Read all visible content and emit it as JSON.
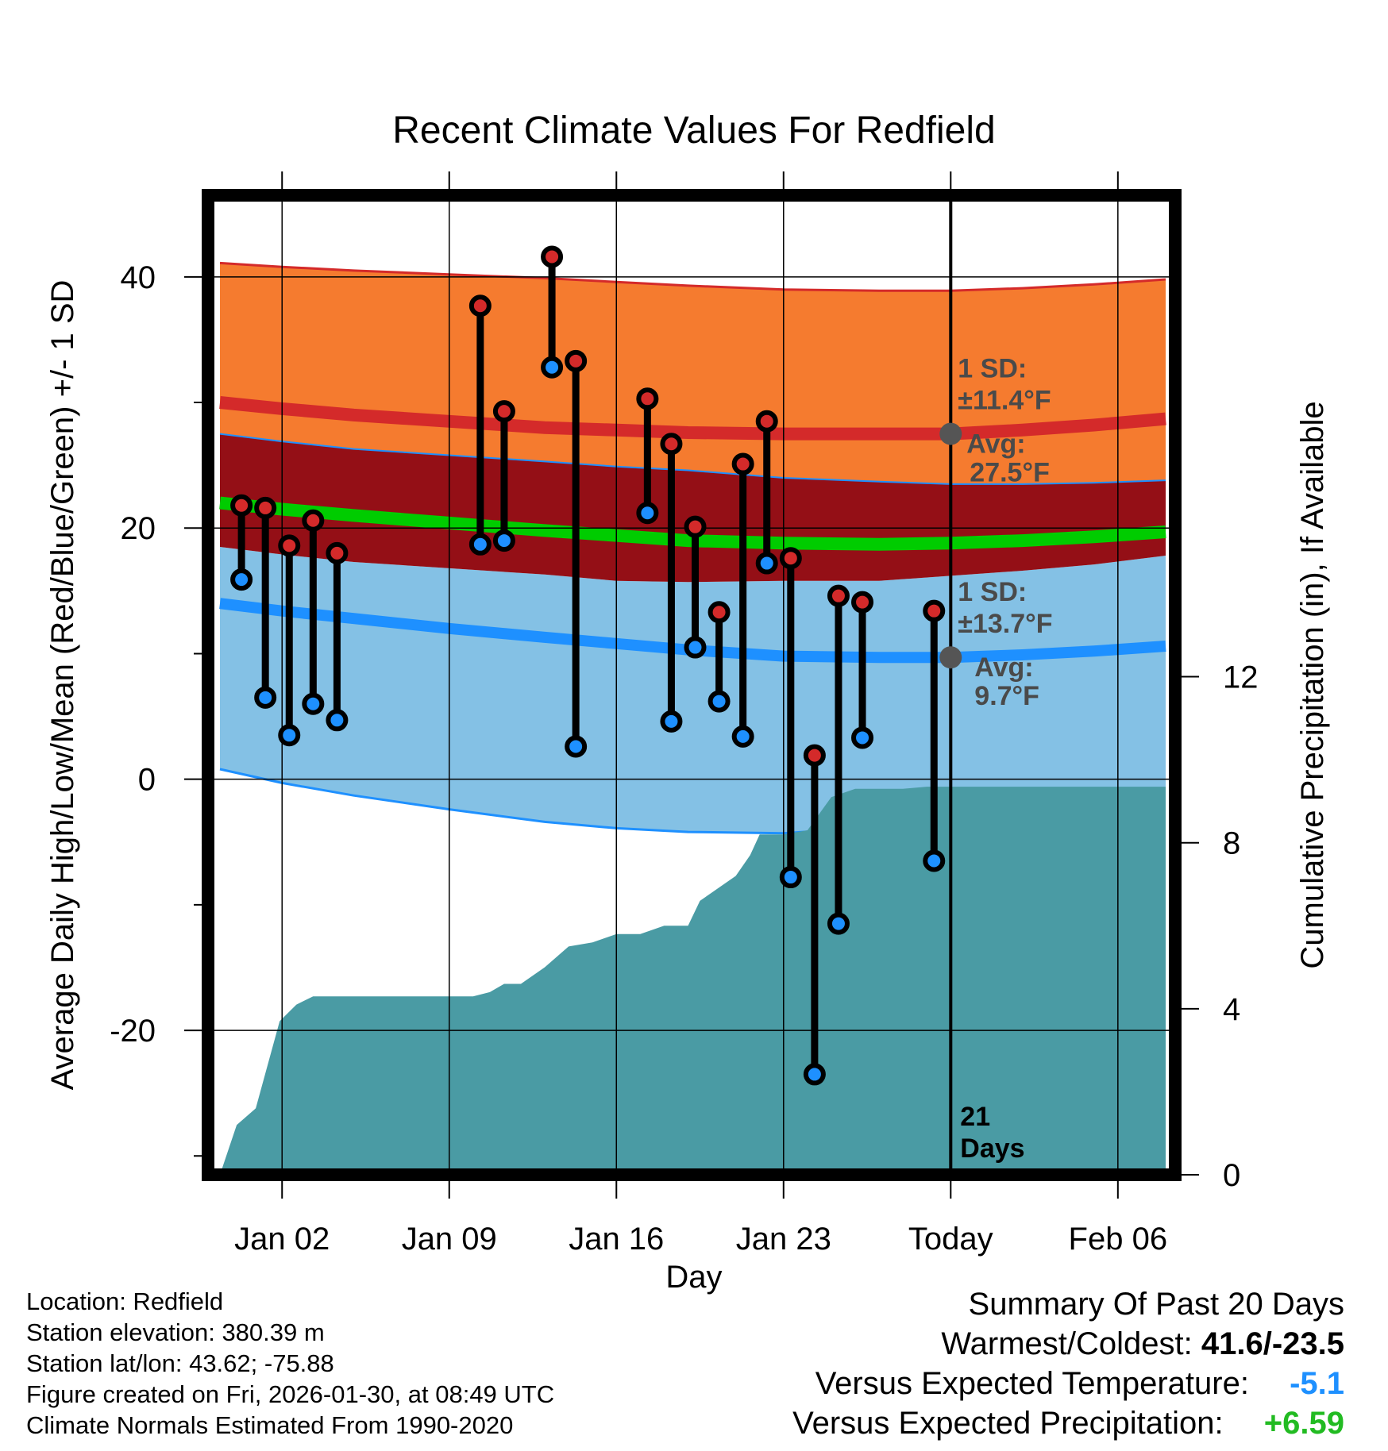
{
  "chart_data": {
    "type": "line",
    "title": "Recent Climate Values For Redfield",
    "xlabel": "Day",
    "ylabel_left": "Average Daily High/Low/Mean (Red/Blue/Green) +/- 1 SD",
    "ylabel_right": "Cumulative Precipitation (in), If Available",
    "xlim": [
      -2.1,
      38.4
    ],
    "ylim_left": [
      -31.5,
      46.5
    ],
    "ylim_right": [
      0,
      23.6
    ],
    "x_ticks": [
      {
        "x": 1,
        "label": "Jan 02"
      },
      {
        "x": 8,
        "label": "Jan 09"
      },
      {
        "x": 15,
        "label": "Jan 16"
      },
      {
        "x": 22,
        "label": "Jan 23"
      },
      {
        "x": 29,
        "label": "Today"
      },
      {
        "x": 36,
        "label": "Feb 06"
      }
    ],
    "y_ticks_left": [
      {
        "v": 40,
        "label": "40"
      },
      {
        "v": 20,
        "label": "20"
      },
      {
        "v": 0,
        "label": "0"
      },
      {
        "v": -20,
        "label": "-20"
      }
    ],
    "y_minor_left": [
      30,
      10,
      -10,
      -30
    ],
    "y_ticks_right": [
      {
        "v": 0,
        "label": "0"
      },
      {
        "v": 4,
        "label": "4"
      },
      {
        "v": 8,
        "label": "8"
      },
      {
        "v": 12,
        "label": "12"
      }
    ],
    "normals": {
      "x": [
        -1.6,
        1,
        4,
        8,
        12,
        15,
        18,
        22,
        26,
        29,
        32,
        35,
        38
      ],
      "high_avg": [
        30.0,
        29.5,
        29.0,
        28.5,
        28.0,
        27.8,
        27.6,
        27.5,
        27.5,
        27.5,
        27.8,
        28.2,
        28.7
      ],
      "high_sd_upper": [
        41.1,
        40.8,
        40.5,
        40.2,
        39.9,
        39.6,
        39.3,
        39.0,
        38.9,
        38.9,
        39.1,
        39.4,
        39.8
      ],
      "high_sd_lower": [
        27.5,
        26.9,
        26.3,
        25.8,
        25.3,
        24.9,
        24.6,
        24.0,
        23.7,
        23.5,
        23.5,
        23.6,
        23.8
      ],
      "mean": [
        22.0,
        21.5,
        21.0,
        20.4,
        19.8,
        19.4,
        19.0,
        18.8,
        18.7,
        18.8,
        19.0,
        19.3,
        19.7
      ],
      "low_avg": [
        14.0,
        13.4,
        12.8,
        12.0,
        11.3,
        10.8,
        10.3,
        9.8,
        9.7,
        9.7,
        9.9,
        10.2,
        10.6
      ],
      "low_sd_upper": [
        18.5,
        17.9,
        17.3,
        16.8,
        16.3,
        15.8,
        15.7,
        15.8,
        15.8,
        16.2,
        16.6,
        17.1,
        17.8
      ],
      "low_sd_lower": [
        0.8,
        -0.3,
        -1.3,
        -2.4,
        -3.4,
        -3.9,
        -4.2,
        -4.3,
        -3.8,
        -3.2,
        -2.8,
        -2.5,
        -2.3
      ]
    },
    "daily": [
      {
        "x": -0.7,
        "high": 21.8,
        "low": 15.9
      },
      {
        "x": 0.3,
        "high": 21.6,
        "low": 6.5
      },
      {
        "x": 1.3,
        "high": 18.6,
        "low": 3.5
      },
      {
        "x": 2.3,
        "high": 20.6,
        "low": 6.0
      },
      {
        "x": 3.3,
        "high": 18.0,
        "low": 4.7
      },
      {
        "x": 9.3,
        "high": 37.7,
        "low": 18.7
      },
      {
        "x": 10.3,
        "high": 29.3,
        "low": 19.0
      },
      {
        "x": 12.3,
        "high": 41.6,
        "low": 32.8
      },
      {
        "x": 13.3,
        "high": 33.3,
        "low": 2.6
      },
      {
        "x": 16.3,
        "high": 30.3,
        "low": 21.2
      },
      {
        "x": 17.3,
        "high": 26.7,
        "low": 4.6
      },
      {
        "x": 18.3,
        "high": 20.1,
        "low": 10.5
      },
      {
        "x": 19.3,
        "high": 13.3,
        "low": 6.2
      },
      {
        "x": 20.3,
        "high": 25.1,
        "low": 3.4
      },
      {
        "x": 21.3,
        "high": 28.5,
        "low": 17.2
      },
      {
        "x": 22.3,
        "high": 17.6,
        "low": -7.8
      },
      {
        "x": 23.3,
        "high": 1.9,
        "low": -23.5
      },
      {
        "x": 24.3,
        "high": 14.6,
        "low": -11.5
      },
      {
        "x": 25.3,
        "high": 14.1,
        "low": 3.3
      },
      {
        "x": 28.3,
        "high": 13.4,
        "low": -6.5
      }
    ],
    "precip_cumulative": {
      "x": [
        -1.6,
        -0.9,
        -0.1,
        0.9,
        1.6,
        2.3,
        3,
        4,
        5,
        6,
        7,
        8,
        9,
        9.7,
        10.3,
        11,
        12,
        13,
        14,
        15,
        16,
        17,
        18,
        18.5,
        19,
        20,
        20.6,
        21,
        21.5,
        22,
        23,
        24,
        25,
        26,
        27,
        28,
        29,
        30,
        32,
        34,
        36,
        38
      ],
      "values": [
        0,
        1.2,
        1.6,
        3.7,
        4.1,
        4.3,
        4.3,
        4.3,
        4.3,
        4.3,
        4.3,
        4.3,
        4.3,
        4.4,
        4.6,
        4.6,
        5.0,
        5.5,
        5.6,
        5.8,
        5.8,
        6.0,
        6.0,
        6.6,
        6.8,
        7.2,
        7.7,
        8.2,
        8.2,
        8.2,
        8.3,
        9.1,
        9.3,
        9.3,
        9.3,
        9.35,
        9.35,
        9.35,
        9.35,
        9.35,
        9.35,
        9.35
      ]
    },
    "today_x": 29,
    "annotations": {
      "high_sd_line1": "1 SD:",
      "high_sd_line2": "±11.4°F",
      "high_avg_line1": "Avg:",
      "high_avg_line2": "27.5°F",
      "high_avg_value": 27.5,
      "low_sd_line1": "1 SD:",
      "low_sd_line2": "±13.7°F",
      "low_avg_line1": "Avg:",
      "low_avg_line2": "9.7°F",
      "low_avg_value": 9.7,
      "days_line1": "21",
      "days_line2": "Days"
    }
  },
  "colors": {
    "high_band": "#f57b2f",
    "high_line": "#d42a2a",
    "overlap": "#940f16",
    "mean": "#00cc00",
    "low_band": "#84c1e5",
    "low_line": "#1e90ff",
    "precip": "#4a9ba4",
    "high_dot": "#d42a2a",
    "low_dot": "#1e90ff"
  },
  "info": {
    "location": "Location: Redfield",
    "elevation": "Station elevation: 380.39 m",
    "latlon": "Station lat/lon: 43.62; -75.88",
    "created": "Figure created on Fri, 2026-01-30, at 08:49 UTC",
    "normals": "Climate Normals Estimated From 1990-2020"
  },
  "summary": {
    "title": "Summary Of Past 20 Days",
    "warm_cold_label": "Warmest/Coldest:",
    "warm_cold_value": "41.6/-23.5",
    "temp_label": "Versus Expected Temperature:",
    "temp_value": "-5.1",
    "precip_label": "Versus Expected Precipitation:",
    "precip_value": "+6.59"
  }
}
